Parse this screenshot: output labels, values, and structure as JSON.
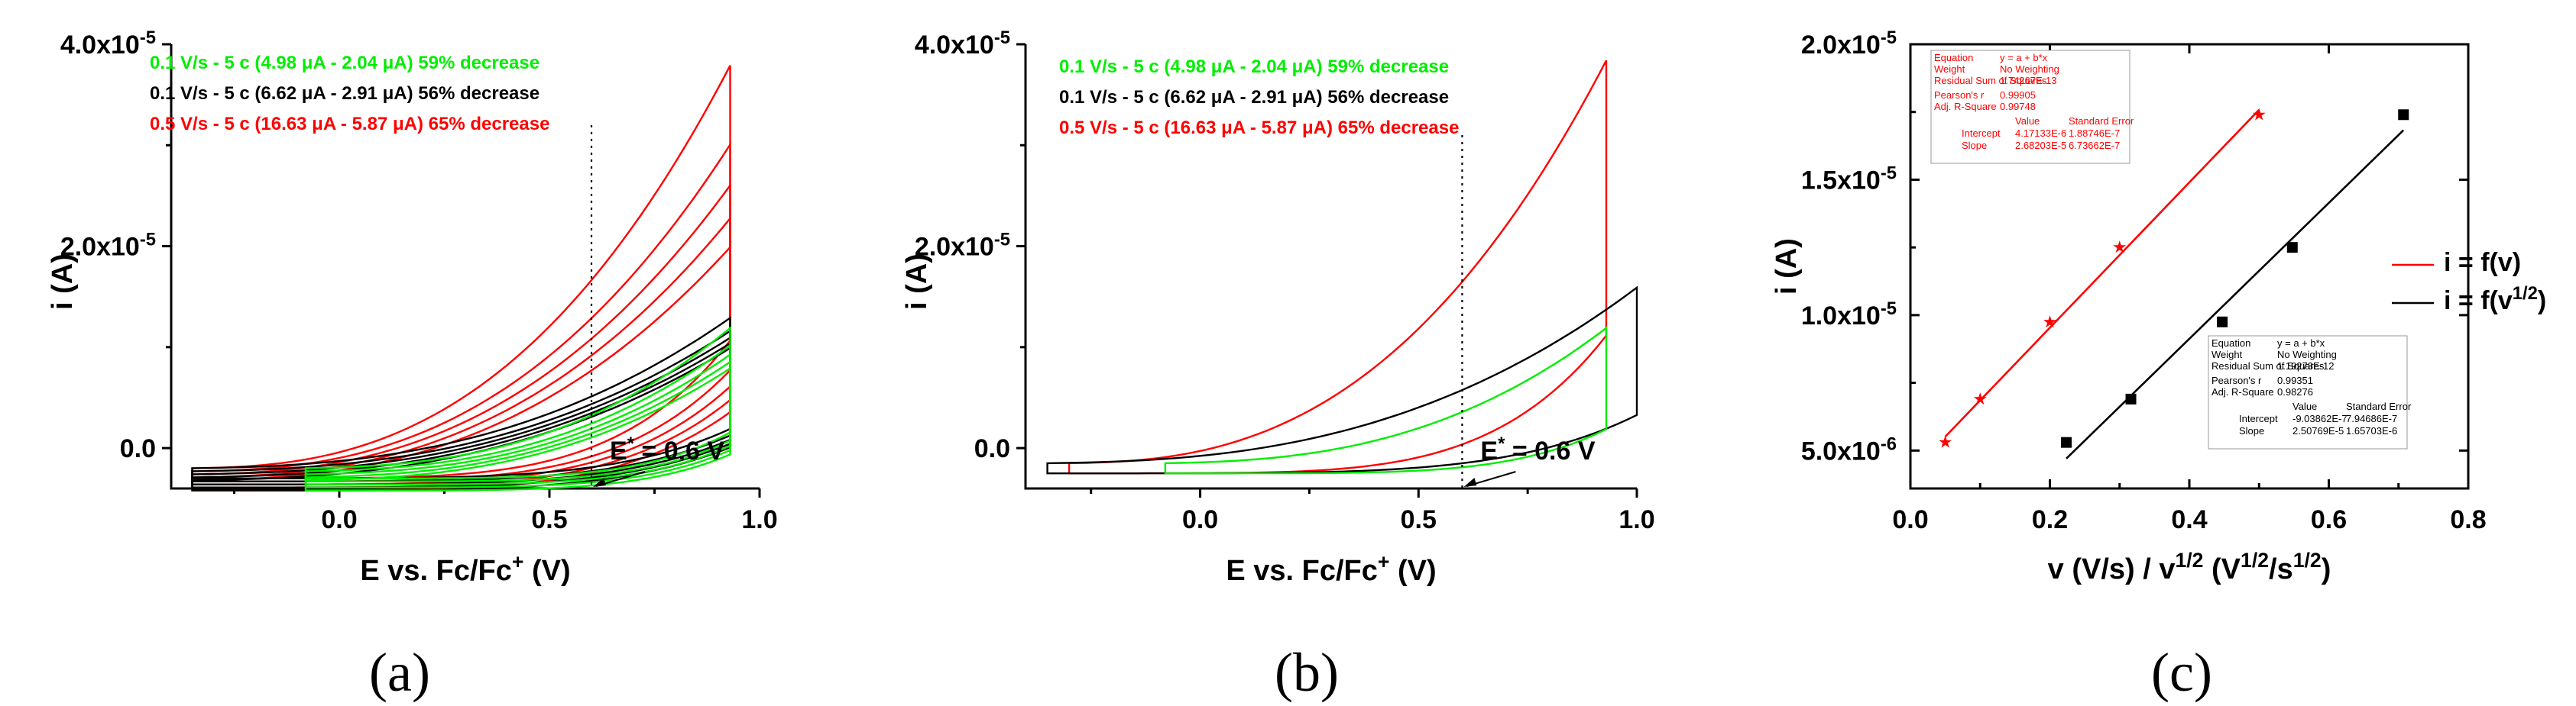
{
  "colors": {
    "red": "#ff0000",
    "black": "#000000",
    "green": "#00ee00"
  },
  "chart_data": [
    {
      "panel": "(a)",
      "type": "line",
      "xlabel": "E vs. Fc/Fc+ (V)",
      "ylabel": "i (A)",
      "xlim": [
        -0.4,
        1.0
      ],
      "ylim": [
        -4e-06,
        4e-05
      ],
      "x_ticks": [
        "0.0",
        "0.5",
        "1.0"
      ],
      "y_ticks": [
        "0.0",
        "2.0x10-5",
        "4.0x10-5"
      ],
      "legend": [
        {
          "text": "0.1 V/s - 5 c (4.98 μA - 2.04 μA) 59% decrease",
          "color": "#00ee00"
        },
        {
          "text": "0.1 V/s - 5 c (6.62 μA - 2.91 μA) 56% decrease",
          "color": "#000000"
        },
        {
          "text": "0.5 V/s - 5 c (16.63 μA - 5.87 μA) 65% decrease",
          "color": "#ff0000"
        }
      ],
      "marker_line_x": 0.6,
      "annotation": "E* = 0.6 V",
      "series": [
        {
          "color": "#ff0000",
          "cycles": 5,
          "x_range": [
            -0.35,
            0.93
          ],
          "i_peak_first": 3.7e-05,
          "i_peak_last": 1.9e-05
        },
        {
          "color": "#000000",
          "cycles": 5,
          "x_range": [
            -0.35,
            0.93
          ],
          "i_peak_first": 1.2e-05,
          "i_peak_last": 9e-06
        },
        {
          "color": "#00ee00",
          "cycles": 5,
          "x_range": [
            -0.08,
            0.93
          ],
          "i_peak_first": 1.1e-05,
          "i_peak_last": 7e-06
        }
      ]
    },
    {
      "panel": "(b)",
      "type": "line",
      "xlabel": "E vs. Fc/Fc+ (V)",
      "ylabel": "i (A)",
      "xlim": [
        -0.4,
        1.0
      ],
      "ylim": [
        -4e-06,
        4e-05
      ],
      "x_ticks": [
        "0.0",
        "0.5",
        "1.0"
      ],
      "y_ticks": [
        "0.0",
        "2.0x10-5",
        "4.0x10-5"
      ],
      "legend": [
        {
          "text": "0.1 V/s - 5 c (4.98 μA - 2.04 μA) 59% decrease",
          "color": "#00ee00"
        },
        {
          "text": "0.1 V/s - 5 c (6.62 μA - 2.91 μA) 56% decrease",
          "color": "#000000"
        },
        {
          "text": "0.5 V/s - 5 c (16.63 μA - 5.87 μA) 65% decrease",
          "color": "#ff0000"
        }
      ],
      "marker_line_x": 0.6,
      "annotation": "E* = 0.6 V",
      "series": [
        {
          "color": "#ff0000",
          "cycles": 1,
          "x_range": [
            -0.3,
            0.93
          ],
          "i_peak": 3.75e-05
        },
        {
          "color": "#000000",
          "cycles": 1,
          "x_range": [
            -0.35,
            1.0
          ],
          "i_peak": 1.5e-05
        },
        {
          "color": "#00ee00",
          "cycles": 1,
          "x_range": [
            -0.08,
            0.93
          ],
          "i_peak": 1.1e-05
        }
      ]
    },
    {
      "panel": "(c)",
      "type": "scatter",
      "xlabel": "v (V/s) / v1/2 (V1/2/s1/2)",
      "ylabel": "i (A)",
      "xlim": [
        0.0,
        0.8
      ],
      "ylim": [
        3.6e-06,
        2e-05
      ],
      "x_ticks": [
        "0.0",
        "0.2",
        "0.4",
        "0.6",
        "0.8"
      ],
      "y_ticks": [
        "5.0x10-6",
        "1.0x10-5",
        "1.5x10-5",
        "2.0x10-5"
      ],
      "legend": [
        "i = f(v)",
        "i = f(v1/2)"
      ],
      "series": [
        {
          "name": "i = f(v)",
          "color": "#ff0000",
          "marker": "star",
          "x": [
            0.05,
            0.1,
            0.2,
            0.3,
            0.5
          ],
          "y": [
            5.3e-06,
            6.9e-06,
            9.75e-06,
            1.25e-05,
            1.74e-05
          ],
          "fit": {
            "intercept": 4.17133e-06,
            "slope": 2.68203e-05
          }
        },
        {
          "name": "i = f(v1/2)",
          "color": "#000000",
          "marker": "square",
          "x": [
            0.2236,
            0.3162,
            0.4472,
            0.5477,
            0.7071
          ],
          "y": [
            5.3e-06,
            6.9e-06,
            9.75e-06,
            1.25e-05,
            1.74e-05
          ],
          "fit": {
            "intercept": -9.03862e-07,
            "slope": 2.50769e-05
          }
        }
      ],
      "fit_tables": [
        {
          "color": "#ff0000",
          "rows": [
            [
              "Equation",
              "y = a + b*x"
            ],
            [
              "Weight",
              "No Weighting"
            ],
            [
              "Residual Sum of Squares",
              "1.74267E-13"
            ],
            [
              "Pearson's r",
              "0.99905"
            ],
            [
              "Adj. R-Square",
              "0.99748"
            ]
          ],
          "header": [
            "Value",
            "Standard Error"
          ],
          "params": [
            [
              "Intercept",
              "4.17133E-6",
              "1.88746E-7"
            ],
            [
              "Slope",
              "2.68203E-5",
              "6.73662E-7"
            ]
          ]
        },
        {
          "color": "#000000",
          "rows": [
            [
              "Equation",
              "y = a + b*x"
            ],
            [
              "Weight",
              "No Weighting"
            ],
            [
              "Residual Sum of Squares",
              "1.19273E-12"
            ],
            [
              "Pearson's r",
              "0.99351"
            ],
            [
              "Adj. R-Square",
              "0.98276"
            ]
          ],
          "header": [
            "Value",
            "Standard Error"
          ],
          "params": [
            [
              "Intercept",
              "-9.03862E-7",
              "7.94686E-7"
            ],
            [
              "Slope",
              "2.50769E-5",
              "1.65703E-6"
            ]
          ]
        }
      ]
    }
  ]
}
